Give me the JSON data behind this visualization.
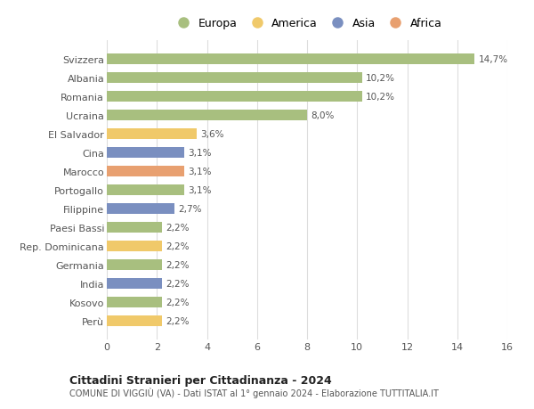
{
  "categories": [
    "Svizzera",
    "Albania",
    "Romania",
    "Ucraina",
    "El Salvador",
    "Cina",
    "Marocco",
    "Portogallo",
    "Filippine",
    "Paesi Bassi",
    "Rep. Dominicana",
    "Germania",
    "India",
    "Kosovo",
    "Perù"
  ],
  "values": [
    14.7,
    10.2,
    10.2,
    8.0,
    3.6,
    3.1,
    3.1,
    3.1,
    2.7,
    2.2,
    2.2,
    2.2,
    2.2,
    2.2,
    2.2
  ],
  "continents": [
    "Europa",
    "Europa",
    "Europa",
    "Europa",
    "America",
    "Asia",
    "Africa",
    "Europa",
    "Asia",
    "Europa",
    "America",
    "Europa",
    "Asia",
    "Europa",
    "America"
  ],
  "colors": {
    "Europa": "#a8bf7f",
    "America": "#f0c96a",
    "Asia": "#7a8fc0",
    "Africa": "#e8a070"
  },
  "labels": [
    "14,7%",
    "10,2%",
    "10,2%",
    "8,0%",
    "3,6%",
    "3,1%",
    "3,1%",
    "3,1%",
    "2,7%",
    "2,2%",
    "2,2%",
    "2,2%",
    "2,2%",
    "2,2%",
    "2,2%"
  ],
  "xlim": [
    0,
    16
  ],
  "xticks": [
    0,
    2,
    4,
    6,
    8,
    10,
    12,
    14,
    16
  ],
  "title": "Cittadini Stranieri per Cittadinanza - 2024",
  "subtitle": "COMUNE DI VIGGIÙ (VA) - Dati ISTAT al 1° gennaio 2024 - Elaborazione TUTTITALIA.IT",
  "legend_order": [
    "Europa",
    "America",
    "Asia",
    "Africa"
  ],
  "background_color": "#ffffff",
  "bar_height": 0.55
}
